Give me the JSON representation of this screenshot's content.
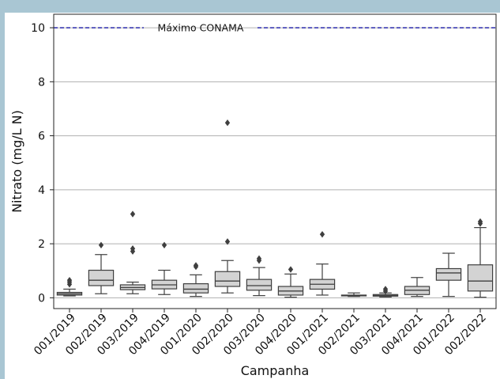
{
  "chart_data": {
    "type": "box",
    "title": "",
    "xlabel": "Campanha",
    "ylabel": "Nitrato (mg/L N)",
    "ylim": [
      -0.4,
      10.5
    ],
    "yticks": [
      0,
      2,
      4,
      6,
      8,
      10
    ],
    "grid": "horizontal",
    "colors": {
      "box_fill": "#d3d3d3",
      "box_edge": "#3f3f3f",
      "outlier": "#3f3f3f",
      "reference_line": "#1a1aa8",
      "grid": "#b0b0b0"
    },
    "reference_line": {
      "value": 10,
      "label": "Máximo CONAMA",
      "style": "dashed"
    },
    "categories": [
      "001/2019",
      "002/2019",
      "003/2019",
      "004/2019",
      "001/2020",
      "002/2020",
      "003/2020",
      "004/2020",
      "001/2021",
      "002/2021",
      "003/2021",
      "004/2021",
      "001/2022",
      "002/2022"
    ],
    "boxes": [
      {
        "whislo": 0.07,
        "q1": 0.1,
        "med": 0.15,
        "q3": 0.2,
        "whishi": 0.32,
        "fliers": [
          0.5,
          0.58,
          0.65
        ]
      },
      {
        "whislo": 0.15,
        "q1": 0.45,
        "med": 0.65,
        "q3": 1.02,
        "whishi": 1.6,
        "fliers": [
          1.95
        ]
      },
      {
        "whislo": 0.15,
        "q1": 0.3,
        "med": 0.38,
        "q3": 0.48,
        "whishi": 0.58,
        "fliers": [
          1.72,
          1.82,
          3.1
        ]
      },
      {
        "whislo": 0.12,
        "q1": 0.33,
        "med": 0.48,
        "q3": 0.65,
        "whishi": 1.02,
        "fliers": [
          1.95
        ]
      },
      {
        "whislo": 0.05,
        "q1": 0.18,
        "med": 0.32,
        "q3": 0.52,
        "whishi": 0.85,
        "fliers": [
          1.15,
          1.2
        ]
      },
      {
        "whislo": 0.18,
        "q1": 0.42,
        "med": 0.62,
        "q3": 0.97,
        "whishi": 1.38,
        "fliers": [
          2.08,
          6.48
        ]
      },
      {
        "whislo": 0.08,
        "q1": 0.28,
        "med": 0.45,
        "q3": 0.68,
        "whishi": 1.12,
        "fliers": [
          1.38,
          1.45
        ]
      },
      {
        "whislo": 0.02,
        "q1": 0.1,
        "med": 0.25,
        "q3": 0.42,
        "whishi": 0.88,
        "fliers": [
          1.05
        ]
      },
      {
        "whislo": 0.1,
        "q1": 0.32,
        "med": 0.5,
        "q3": 0.68,
        "whishi": 1.25,
        "fliers": [
          2.35
        ]
      },
      {
        "whislo": 0.05,
        "q1": 0.07,
        "med": 0.08,
        "q3": 0.1,
        "whishi": 0.18,
        "fliers": []
      },
      {
        "whislo": 0.03,
        "q1": 0.06,
        "med": 0.09,
        "q3": 0.12,
        "whishi": 0.18,
        "fliers": [
          0.25,
          0.32
        ]
      },
      {
        "whislo": 0.05,
        "q1": 0.12,
        "med": 0.28,
        "q3": 0.42,
        "whishi": 0.75,
        "fliers": []
      },
      {
        "whislo": 0.05,
        "q1": 0.65,
        "med": 0.92,
        "q3": 1.08,
        "whishi": 1.65,
        "fliers": []
      },
      {
        "whislo": 0.02,
        "q1": 0.25,
        "med": 0.62,
        "q3": 1.22,
        "whishi": 2.6,
        "fliers": [
          2.75,
          2.82
        ]
      }
    ]
  }
}
